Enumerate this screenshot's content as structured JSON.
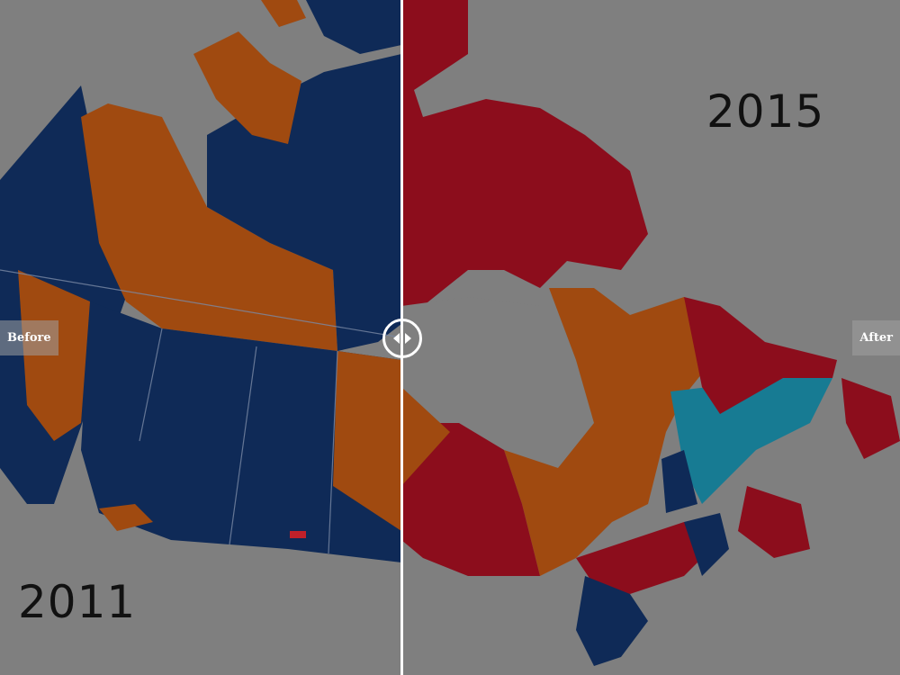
{
  "slider": {
    "before_label": "Before",
    "after_label": "After",
    "position_percent": 44.6
  },
  "before": {
    "year": "2011"
  },
  "after": {
    "year": "2015"
  },
  "colors": {
    "background": "#7f7f7f",
    "conservative": "#0f2a57",
    "ndp": "#a04a10",
    "liberal": "#8c0d1c",
    "bloc": "#177b93"
  }
}
